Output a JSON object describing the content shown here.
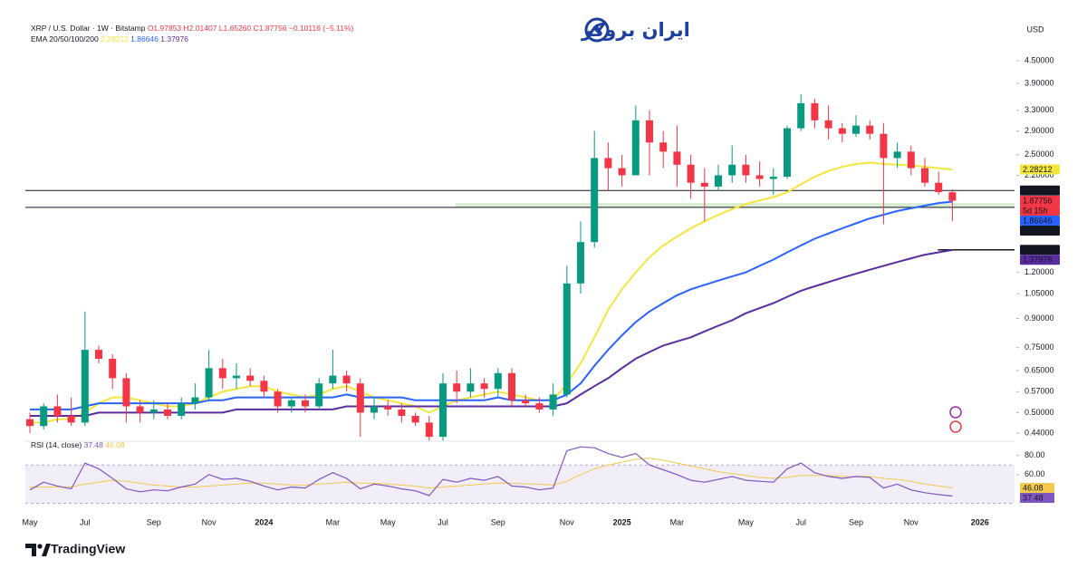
{
  "chart_data": {
    "type": "candlestick",
    "title": "XRP / U.S. Dollar · 1W · Bitstamp",
    "ohlc_labels": [
      "O1.97853",
      "H2.01407",
      "L1.65260",
      "C1.87756"
    ],
    "change_label": "−0.10116 (−5.11%)",
    "currency": "USD",
    "countdown": "5d 15h",
    "log_scale": true,
    "up_color": "#089981",
    "down_color": "#f23645",
    "categories": [
      "May",
      null,
      null,
      null,
      "Jul",
      null,
      null,
      null,
      null,
      "Sep",
      null,
      null,
      null,
      "Nov",
      null,
      null,
      null,
      "2024",
      null,
      null,
      null,
      null,
      "Mar",
      null,
      null,
      null,
      "May",
      null,
      null,
      null,
      "Jul",
      null,
      null,
      null,
      "Sep",
      null,
      null,
      null,
      null,
      "Nov",
      null,
      null,
      null,
      "2025",
      null,
      null,
      null,
      "Mar",
      null,
      null,
      null,
      null,
      "May",
      null,
      null,
      null,
      "Jul",
      null,
      null,
      null,
      "Sep",
      null,
      null,
      null,
      "Nov",
      null,
      null,
      null,
      null,
      "2026"
    ],
    "candles": [
      [
        0.48,
        0.5,
        0.44,
        0.46
      ],
      [
        0.46,
        0.53,
        0.45,
        0.52
      ],
      [
        0.52,
        0.56,
        0.47,
        0.49
      ],
      [
        0.49,
        0.55,
        0.46,
        0.47
      ],
      [
        0.47,
        0.94,
        0.46,
        0.74
      ],
      [
        0.74,
        0.76,
        0.68,
        0.7
      ],
      [
        0.7,
        0.72,
        0.58,
        0.62
      ],
      [
        0.62,
        0.64,
        0.47,
        0.52
      ],
      [
        0.52,
        0.54,
        0.47,
        0.5
      ],
      [
        0.5,
        0.54,
        0.48,
        0.51
      ],
      [
        0.51,
        0.53,
        0.48,
        0.49
      ],
      [
        0.49,
        0.55,
        0.48,
        0.53
      ],
      [
        0.53,
        0.6,
        0.51,
        0.55
      ],
      [
        0.55,
        0.74,
        0.54,
        0.66
      ],
      [
        0.66,
        0.7,
        0.58,
        0.62
      ],
      [
        0.62,
        0.68,
        0.58,
        0.63
      ],
      [
        0.63,
        0.66,
        0.59,
        0.61
      ],
      [
        0.61,
        0.63,
        0.55,
        0.57
      ],
      [
        0.57,
        0.58,
        0.5,
        0.52
      ],
      [
        0.52,
        0.55,
        0.5,
        0.54
      ],
      [
        0.54,
        0.56,
        0.5,
        0.52
      ],
      [
        0.52,
        0.62,
        0.51,
        0.6
      ],
      [
        0.6,
        0.74,
        0.58,
        0.63
      ],
      [
        0.63,
        0.65,
        0.57,
        0.6
      ],
      [
        0.6,
        0.62,
        0.43,
        0.5
      ],
      [
        0.5,
        0.55,
        0.48,
        0.52
      ],
      [
        0.52,
        0.54,
        0.49,
        0.51
      ],
      [
        0.51,
        0.53,
        0.47,
        0.49
      ],
      [
        0.49,
        0.5,
        0.46,
        0.47
      ],
      [
        0.47,
        0.49,
        0.42,
        0.43
      ],
      [
        0.43,
        0.64,
        0.42,
        0.6
      ],
      [
        0.6,
        0.65,
        0.53,
        0.57
      ],
      [
        0.57,
        0.66,
        0.55,
        0.6
      ],
      [
        0.6,
        0.62,
        0.55,
        0.58
      ],
      [
        0.58,
        0.66,
        0.55,
        0.64
      ],
      [
        0.64,
        0.66,
        0.52,
        0.54
      ],
      [
        0.54,
        0.56,
        0.52,
        0.53
      ],
      [
        0.53,
        0.55,
        0.5,
        0.51
      ],
      [
        0.51,
        0.6,
        0.49,
        0.56
      ],
      [
        0.56,
        1.25,
        0.55,
        1.12
      ],
      [
        1.12,
        1.65,
        1.05,
        1.45
      ],
      [
        1.45,
        2.9,
        1.4,
        2.45
      ],
      [
        2.45,
        2.7,
        2.0,
        2.3
      ],
      [
        2.3,
        2.5,
        2.05,
        2.2
      ],
      [
        2.2,
        3.4,
        2.2,
        3.1
      ],
      [
        3.1,
        3.3,
        2.2,
        2.7
      ],
      [
        2.7,
        2.9,
        2.3,
        2.55
      ],
      [
        2.55,
        3.0,
        2.05,
        2.35
      ],
      [
        2.35,
        2.5,
        1.9,
        2.1
      ],
      [
        2.1,
        2.3,
        1.65,
        2.05
      ],
      [
        2.05,
        2.35,
        2.0,
        2.2
      ],
      [
        2.2,
        2.65,
        2.1,
        2.35
      ],
      [
        2.35,
        2.5,
        2.1,
        2.2
      ],
      [
        2.2,
        2.4,
        2.05,
        2.15
      ],
      [
        2.15,
        2.3,
        1.95,
        2.18
      ],
      [
        2.18,
        3.0,
        2.15,
        2.95
      ],
      [
        2.95,
        3.65,
        2.9,
        3.45
      ],
      [
        3.45,
        3.55,
        2.95,
        3.1
      ],
      [
        3.1,
        3.4,
        2.75,
        2.95
      ],
      [
        2.95,
        3.05,
        2.7,
        2.85
      ],
      [
        2.85,
        3.2,
        2.8,
        3.0
      ],
      [
        3.0,
        3.1,
        2.75,
        2.85
      ],
      [
        2.85,
        3.05,
        1.62,
        2.45
      ],
      [
        2.45,
        2.7,
        2.3,
        2.55
      ],
      [
        2.55,
        2.65,
        2.2,
        2.3
      ],
      [
        2.3,
        2.45,
        2.05,
        2.1
      ],
      [
        2.1,
        2.25,
        1.95,
        1.98
      ],
      [
        1.97853,
        2.01407,
        1.6526,
        1.87756
      ],
      null,
      null
    ],
    "ylim": [
      0.423,
      5.24
    ],
    "yticks": [
      {
        "value": 4.5,
        "label": "4.50000"
      },
      {
        "value": 3.9,
        "label": "3.90000"
      },
      {
        "value": 3.3,
        "label": "3.30000"
      },
      {
        "value": 2.9,
        "label": "2.90000"
      },
      {
        "value": 2.5,
        "label": "2.50000"
      },
      {
        "value": 2.2,
        "label": "2.20000"
      },
      {
        "value": 1.2,
        "label": "1.20000"
      },
      {
        "value": 1.05,
        "label": "1.05000"
      },
      {
        "value": 0.9,
        "label": "0.90000"
      },
      {
        "value": 0.75,
        "label": "0.75000"
      },
      {
        "value": 0.65,
        "label": "0.65000"
      },
      {
        "value": 0.57,
        "label": "0.57000"
      },
      {
        "value": 0.5,
        "label": "0.50000"
      },
      {
        "value": 0.44,
        "label": "0.44000"
      }
    ],
    "levels": [
      {
        "value": 2,
        "label": "2.00000"
      },
      {
        "value": 1.8,
        "label": "1.80000"
      }
    ],
    "ray": 1.38178,
    "zone": {
      "range": [
        1.8,
        1.85
      ],
      "color": "#cfe8c9"
    },
    "indicator": {
      "label": "EMA 20/50/100/200",
      "series": [
        {
          "color": "#f5e63c",
          "values": [
            0.47,
            0.47,
            0.48,
            0.48,
            0.5,
            0.53,
            0.55,
            0.55,
            0.54,
            0.53,
            0.52,
            0.52,
            0.53,
            0.55,
            0.57,
            0.58,
            0.59,
            0.59,
            0.57,
            0.56,
            0.55,
            0.56,
            0.58,
            0.59,
            0.57,
            0.55,
            0.54,
            0.53,
            0.52,
            0.5,
            0.52,
            0.54,
            0.55,
            0.56,
            0.57,
            0.56,
            0.55,
            0.54,
            0.54,
            0.6,
            0.68,
            0.8,
            0.95,
            1.08,
            1.2,
            1.32,
            1.42,
            1.5,
            1.58,
            1.65,
            1.72,
            1.78,
            1.84,
            1.88,
            1.92,
            1.98,
            2.08,
            2.18,
            2.26,
            2.32,
            2.36,
            2.38,
            2.36,
            2.35,
            2.34,
            2.32,
            2.3,
            2.28212,
            null,
            null
          ]
        },
        {
          "color": "#2962ff",
          "values": [
            0.51,
            0.51,
            0.51,
            0.51,
            0.52,
            0.53,
            0.53,
            0.53,
            0.53,
            0.53,
            0.53,
            0.53,
            0.53,
            0.54,
            0.54,
            0.55,
            0.55,
            0.55,
            0.55,
            0.55,
            0.55,
            0.55,
            0.55,
            0.56,
            0.55,
            0.55,
            0.55,
            0.55,
            0.54,
            0.54,
            0.54,
            0.54,
            0.54,
            0.54,
            0.55,
            0.54,
            0.54,
            0.54,
            0.54,
            0.56,
            0.6,
            0.67,
            0.74,
            0.81,
            0.88,
            0.94,
            0.99,
            1.04,
            1.08,
            1.11,
            1.14,
            1.17,
            1.2,
            1.25,
            1.3,
            1.36,
            1.42,
            1.48,
            1.53,
            1.58,
            1.63,
            1.68,
            1.72,
            1.76,
            1.79,
            1.82,
            1.85,
            1.86646,
            null,
            null
          ]
        },
        {
          "color": "#5b2ca0",
          "values": [
            0.49,
            0.49,
            0.49,
            0.49,
            0.49,
            0.5,
            0.5,
            0.5,
            0.5,
            0.5,
            0.5,
            0.5,
            0.5,
            0.5,
            0.5,
            0.51,
            0.51,
            0.51,
            0.51,
            0.51,
            0.51,
            0.51,
            0.51,
            0.52,
            0.52,
            0.52,
            0.52,
            0.52,
            0.52,
            0.52,
            0.52,
            0.52,
            0.52,
            0.52,
            0.52,
            0.52,
            0.52,
            0.52,
            0.52,
            0.53,
            0.56,
            0.59,
            0.62,
            0.66,
            0.7,
            0.73,
            0.76,
            0.78,
            0.8,
            0.83,
            0.86,
            0.89,
            0.93,
            0.96,
            0.99,
            1.03,
            1.07,
            1.1,
            1.13,
            1.16,
            1.19,
            1.22,
            1.25,
            1.28,
            1.31,
            1.34,
            1.36,
            1.37976,
            null,
            null
          ]
        }
      ]
    },
    "rsi": {
      "label": "RSI (14, close)",
      "ylim": [
        20,
        92
      ],
      "yticks": [
        {
          "value": 80,
          "label": "80.00"
        },
        {
          "value": 60,
          "label": "60.00"
        }
      ],
      "band": [
        30,
        70
      ],
      "series": [
        {
          "color": "#7e57c2",
          "values": [
            44,
            52,
            48,
            45,
            72,
            66,
            56,
            45,
            42,
            44,
            43,
            47,
            50,
            60,
            55,
            56,
            53,
            48,
            44,
            47,
            46,
            55,
            62,
            56,
            45,
            50,
            48,
            45,
            43,
            38,
            55,
            52,
            56,
            54,
            58,
            48,
            47,
            44,
            46,
            85,
            89,
            88,
            82,
            78,
            82,
            70,
            65,
            60,
            54,
            52,
            55,
            58,
            54,
            53,
            52,
            66,
            72,
            62,
            58,
            56,
            58,
            57,
            46,
            50,
            44,
            41,
            39,
            37.48,
            null,
            null
          ]
        },
        {
          "color": "#f2c94c",
          "values": [
            47,
            47,
            47,
            47,
            50,
            52,
            54,
            53,
            51,
            49,
            48,
            47,
            47,
            48,
            49,
            50,
            51,
            51,
            50,
            49,
            49,
            50,
            51,
            52,
            51,
            51,
            50,
            49,
            48,
            46,
            47,
            48,
            49,
            50,
            51,
            51,
            50,
            50,
            49,
            53,
            60,
            66,
            70,
            73,
            76,
            77,
            75,
            72,
            69,
            66,
            63,
            61,
            59,
            57,
            56,
            57,
            59,
            59,
            59,
            58,
            58,
            58,
            56,
            55,
            53,
            50,
            48,
            46.08,
            null,
            null
          ]
        }
      ]
    }
  },
  "logo": {
    "text": "ایران بروکر"
  },
  "footer": {
    "brand": "TradingView"
  }
}
